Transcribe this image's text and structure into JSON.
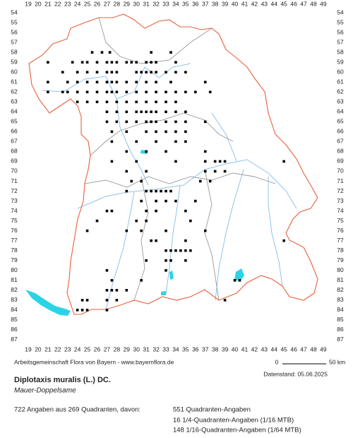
{
  "grid": {
    "columns": [
      19,
      20,
      21,
      22,
      23,
      24,
      25,
      26,
      27,
      28,
      29,
      30,
      31,
      32,
      33,
      34,
      35,
      36,
      37,
      38,
      39,
      40,
      41,
      42,
      43,
      44,
      45,
      46,
      47,
      48,
      49
    ],
    "rows": [
      54,
      55,
      56,
      57,
      58,
      59,
      60,
      61,
      62,
      63,
      64,
      65,
      66,
      67,
      68,
      69,
      70,
      71,
      72,
      73,
      74,
      75,
      76,
      77,
      78,
      79,
      80,
      81,
      82,
      83,
      84,
      85,
      86,
      87
    ]
  },
  "credit": "Arbeitsgemeinschaft Flora von Bayern - www.bayernflora.de",
  "scale": {
    "start": "0",
    "end": "50 km"
  },
  "date": "Datenstand: 05.06.2025",
  "species": {
    "name": "Diplotaxis muralis (L.) DC.",
    "common_name": "Mauer-Doppelsame"
  },
  "summary": {
    "total": "722 Angaben aus 269 Quadranten, davon:",
    "breakdown": [
      "551 Quadranten-Angaben",
      "16 1/4-Quadranten-Angaben (1/16 MTB)",
      "148 1/16-Quadranten-Angaben (1/64 MTB)"
    ]
  }
}
